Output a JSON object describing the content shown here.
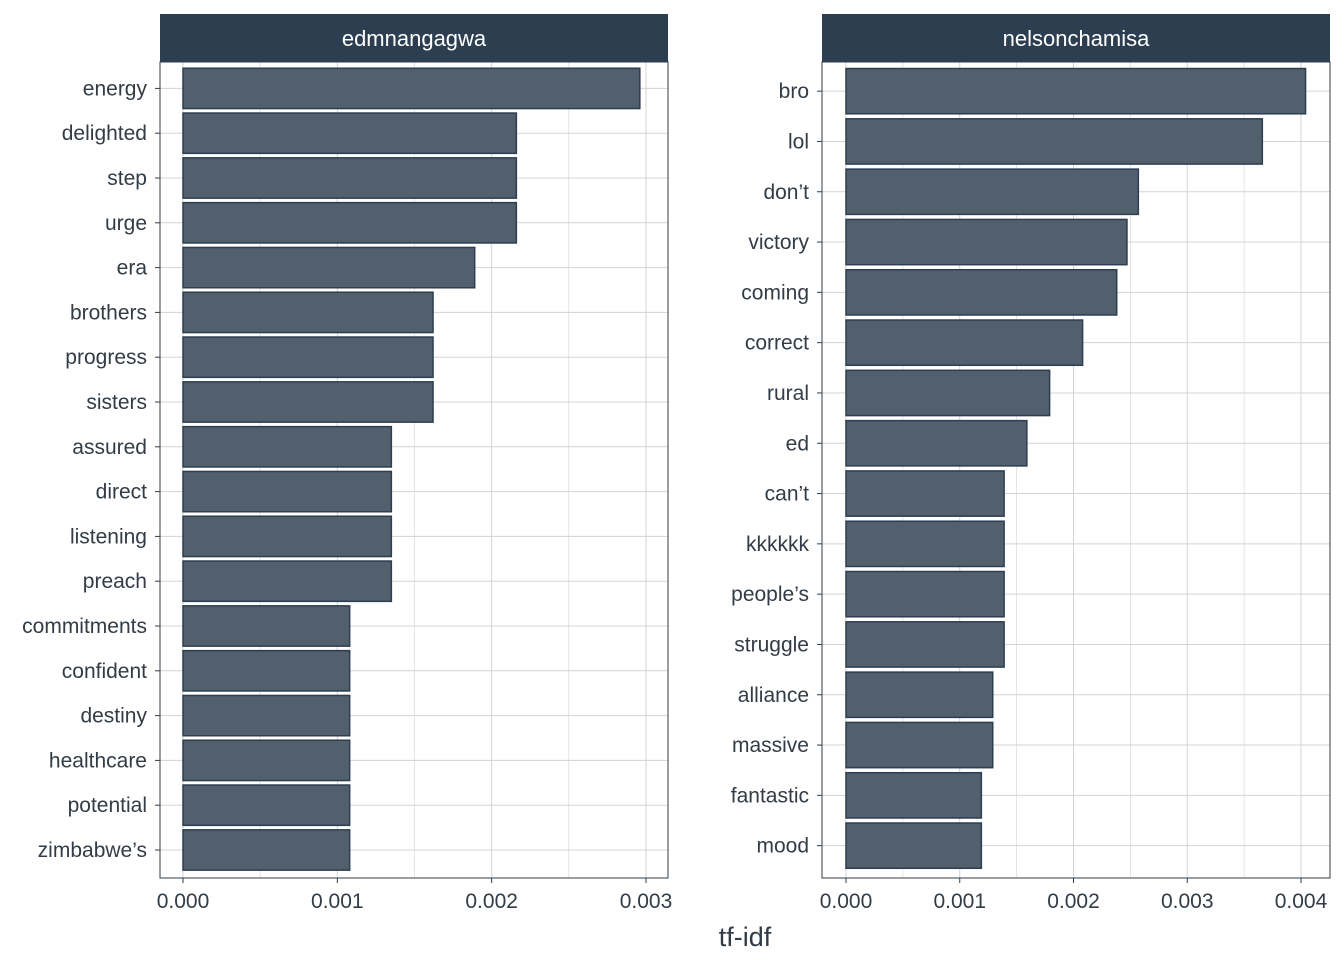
{
  "chart_data": {
    "type": "bar",
    "orientation": "horizontal",
    "facet_by": "user",
    "xlabel": "tf-idf",
    "ylabel": "",
    "grid": true,
    "colors": {
      "bar_fill": "#52606e",
      "bar_stroke": "#2c3e50",
      "strip_fill": "#2c3e50",
      "strip_text": "#ffffff",
      "grid": "#d3d3d3",
      "panel_border": "#333c46",
      "text": "#333c46"
    },
    "panels": [
      {
        "strip_label": "edmnangagwa",
        "xlim": [
          0,
          0.003
        ],
        "xticks": [
          0.0,
          0.001,
          0.002,
          0.003
        ],
        "xtick_labels": [
          "0.000",
          "0.001",
          "0.002",
          "0.003"
        ],
        "categories": [
          "energy",
          "delighted",
          "step",
          "urge",
          "era",
          "brothers",
          "progress",
          "sisters",
          "assured",
          "direct",
          "listening",
          "preach",
          "commitments",
          "confident",
          "destiny",
          "healthcare",
          "potential",
          "zimbabwe’s"
        ],
        "values": [
          0.00296,
          0.00216,
          0.00216,
          0.00216,
          0.00189,
          0.00162,
          0.00162,
          0.00162,
          0.00135,
          0.00135,
          0.00135,
          0.00135,
          0.00108,
          0.00108,
          0.00108,
          0.00108,
          0.00108,
          0.00108
        ]
      },
      {
        "strip_label": "nelsonchamisa",
        "xlim": [
          0,
          0.004
        ],
        "xticks": [
          0.0,
          0.001,
          0.002,
          0.003,
          0.004
        ],
        "xtick_labels": [
          "0.000",
          "0.001",
          "0.002",
          "0.003",
          "0.004"
        ],
        "categories": [
          "bro",
          "lol",
          "don’t",
          "victory",
          "coming",
          "correct",
          "rural",
          "ed",
          "can’t",
          "kkkkkk",
          "people’s",
          "struggle",
          "alliance",
          "massive",
          "fantastic",
          "mood"
        ],
        "values": [
          0.00404,
          0.00366,
          0.00257,
          0.00247,
          0.00238,
          0.00208,
          0.00179,
          0.00159,
          0.00139,
          0.00139,
          0.00139,
          0.00139,
          0.00129,
          0.00129,
          0.00119,
          0.00119
        ]
      }
    ]
  }
}
